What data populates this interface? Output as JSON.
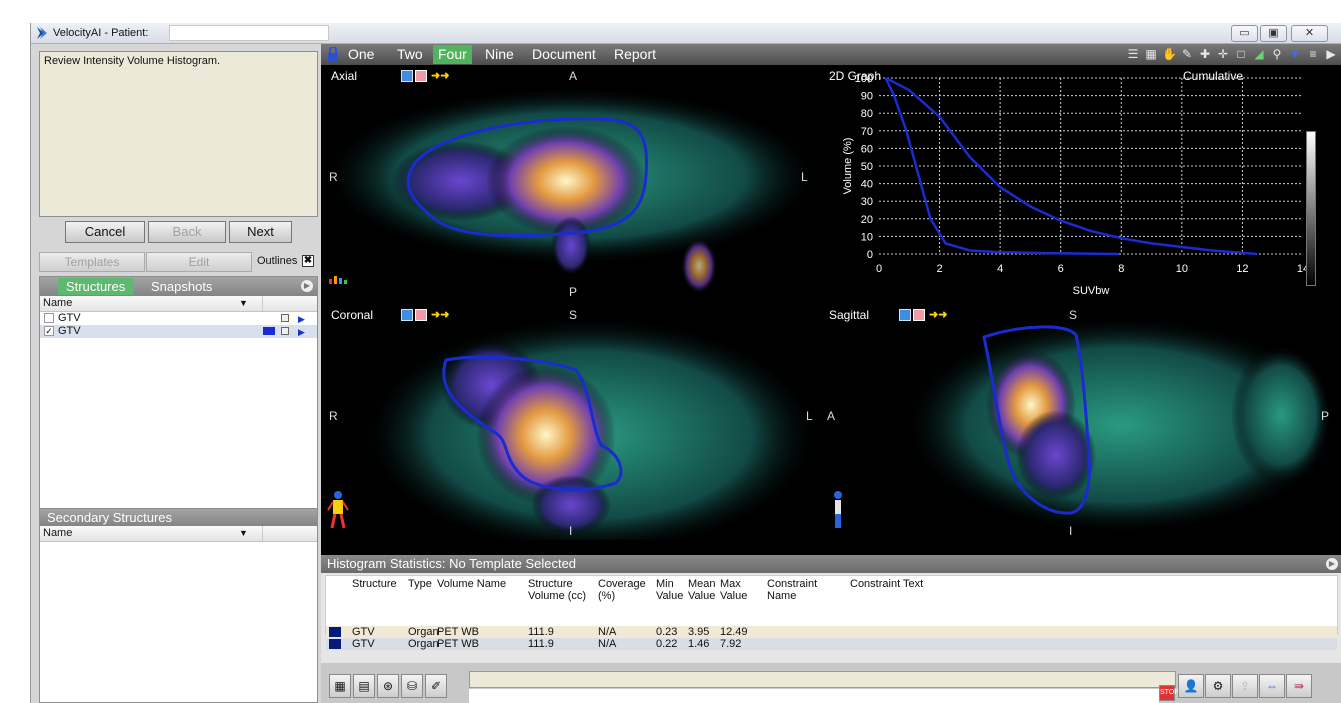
{
  "window": {
    "title": "VelocityAI - Patient:",
    "controls": [
      "minimize",
      "restore",
      "close"
    ]
  },
  "instructions": {
    "text": "Review Intensity Volume Histogram."
  },
  "nav": {
    "cancel": "Cancel",
    "back": "Back",
    "next": "Next"
  },
  "templates_row": {
    "templates": "Templates",
    "edit": "Edit",
    "outlines": "Outlines",
    "outlines_toggle": "✖"
  },
  "structures_panel": {
    "tabs": [
      "Structures",
      "Snapshots"
    ],
    "active_tab": "Structures",
    "column_name": "Name",
    "rows": [
      {
        "name": "GTV",
        "checked": false,
        "check": ""
      },
      {
        "name": "GTV",
        "checked": true,
        "check": "✓",
        "color": "#1a2cd0"
      }
    ]
  },
  "secondary_panel": {
    "title": "Secondary Structures",
    "column_name": "Name"
  },
  "layout_tabs": {
    "items": [
      "One",
      "Two",
      "Four",
      "Nine",
      "Document",
      "Report"
    ],
    "active": "Four"
  },
  "views": {
    "axial": {
      "label": "Axial",
      "top": "A",
      "bottom": "P",
      "left": "R",
      "right": "L"
    },
    "coronal": {
      "label": "Coronal",
      "top": "S",
      "bottom": "I",
      "left": "R",
      "right": "L"
    },
    "sagittal": {
      "label": "Sagittal",
      "top": "S",
      "bottom": "I",
      "left": "A",
      "right": "P"
    }
  },
  "graph": {
    "title": "2D Graph",
    "mode": "Cumulative"
  },
  "chart_data": {
    "type": "line",
    "title": "2D Graph",
    "xlabel": "SUVbw",
    "ylabel": "Volume (%)",
    "xlim": [
      0,
      14
    ],
    "ylim": [
      0,
      100
    ],
    "xticks": [
      0,
      2,
      4,
      6,
      8,
      10,
      12,
      14
    ],
    "yticks": [
      0,
      10,
      20,
      30,
      40,
      50,
      60,
      70,
      80,
      90,
      100
    ],
    "grid": true,
    "series": [
      {
        "x": [
          0.22,
          0.5,
          0.9,
          1.3,
          1.7,
          2.2,
          3.0,
          4.0,
          5.5,
          7.92
        ],
        "y": [
          100,
          90,
          70,
          45,
          20,
          6,
          2,
          1,
          0.5,
          0
        ]
      },
      {
        "x": [
          0.23,
          1.0,
          2.0,
          3.0,
          4.0,
          5.0,
          6.0,
          7.0,
          8.0,
          9.0,
          10.0,
          11.0,
          12.49
        ],
        "y": [
          100,
          93,
          78,
          55,
          38,
          27,
          19,
          13,
          9,
          6,
          4,
          2,
          0
        ]
      }
    ]
  },
  "histogram": {
    "title": "Histogram Statistics: No Template Selected",
    "headers": [
      [
        "Structure"
      ],
      [
        "Type"
      ],
      [
        "Volume Name"
      ],
      [
        "Structure",
        "Volume (cc)"
      ],
      [
        "Coverage",
        "(%)"
      ],
      [
        "Min",
        "Value"
      ],
      [
        "Mean",
        "Value"
      ],
      [
        "Max",
        "Value"
      ],
      [
        "Constraint",
        "Name"
      ],
      [
        "Constraint Text"
      ]
    ],
    "rows": [
      {
        "structure": "GTV",
        "type": "Organ",
        "volume": "PET WB",
        "vol_cc": "111.9",
        "coverage": "N/A",
        "min": "0.23",
        "mean": "3.95",
        "max": "12.49"
      },
      {
        "structure": "GTV",
        "type": "Organ",
        "volume": "PET WB",
        "vol_cc": "111.9",
        "coverage": "N/A",
        "min": "0.22",
        "mean": "1.46",
        "max": "7.92"
      }
    ]
  },
  "colors": {
    "accent": "#52b35f",
    "contour": "#1a2cd0",
    "panel_header": "#8a8a8a"
  }
}
